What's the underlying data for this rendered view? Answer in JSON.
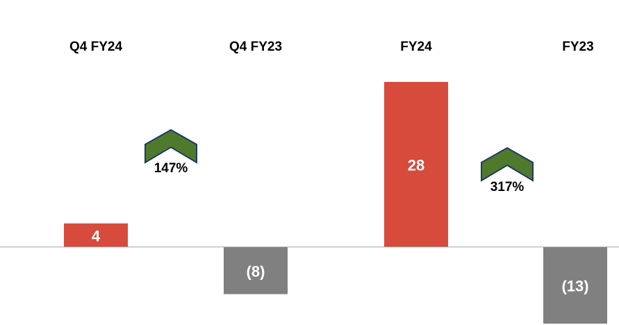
{
  "chart_data": {
    "type": "bar",
    "categories": [
      "Q4 FY24",
      "Q4 FY23",
      "FY24",
      "FY23"
    ],
    "values": [
      4,
      -8,
      28,
      -13
    ],
    "value_labels": [
      "4",
      "(8)",
      "28",
      "(13)"
    ],
    "colors": [
      "#d64b3b",
      "#808080",
      "#d64b3b",
      "#808080"
    ],
    "annotations": [
      {
        "text": "147%",
        "color": "#4f7a2c"
      },
      {
        "text": "317%",
        "color": "#4f7a2c"
      }
    ]
  }
}
